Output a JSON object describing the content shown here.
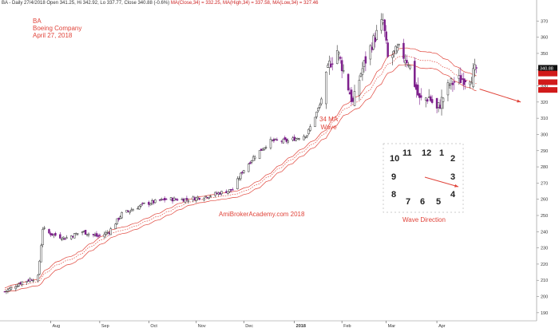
{
  "header": {
    "prefix": "BA - Daily 27/4/2018 Open 341.25, Hi 342.92, Lo 337.77, Close 340.88 (-0.6%)",
    "ma_close": "MA(Close,34) = 332.25,",
    "ma_high": "MA(High,34) = 337.58,",
    "ma_low": "MA(Low,34) = 327.46"
  },
  "annotations": {
    "ticker": "BA",
    "company": "Boeing Company",
    "date": "April 27, 2018",
    "ma_label": "34 MA",
    "wave_label": "Wave",
    "website": "AmiBrokerAcademy.com  2018",
    "wave_direction": "Wave Direction"
  },
  "clock": {
    "numbers": [
      "11",
      "12",
      "1",
      "10",
      "2",
      "9",
      "3",
      "8",
      "4",
      "7",
      "6",
      "5"
    ]
  },
  "price_tags": {
    "last": "340.88"
  },
  "colors": {
    "up_candle": "#ffffff",
    "down_candle": "#7d1f8c",
    "ma": "#e0443a",
    "annotation": "#e0443a"
  },
  "chart_data": {
    "type": "candlestick",
    "ylim": [
      185,
      380
    ],
    "yticks": [
      190,
      200,
      210,
      220,
      230,
      240,
      250,
      260,
      270,
      280,
      290,
      300,
      310,
      320,
      330,
      340,
      350,
      360,
      370
    ],
    "x_labels": [
      "Aug",
      "Sep",
      "Oct",
      "Nov",
      "Dec",
      "2018",
      "Feb",
      "Mar",
      "Apr"
    ],
    "price_path": [
      {
        "x": "2017-07-03",
        "close": 203
      },
      {
        "x": "2017-07-14",
        "close": 209
      },
      {
        "x": "2017-07-24",
        "close": 212
      },
      {
        "x": "2017-07-26",
        "close": 232
      },
      {
        "x": "2017-07-27",
        "close": 242
      },
      {
        "x": "2017-07-31",
        "close": 239
      },
      {
        "x": "2017-08-10",
        "close": 236
      },
      {
        "x": "2017-08-21",
        "close": 240
      },
      {
        "x": "2017-08-31",
        "close": 237
      },
      {
        "x": "2017-09-07",
        "close": 240
      },
      {
        "x": "2017-09-15",
        "close": 251
      },
      {
        "x": "2017-09-29",
        "close": 257
      },
      {
        "x": "2017-10-13",
        "close": 260
      },
      {
        "x": "2017-10-27",
        "close": 260
      },
      {
        "x": "2017-11-08",
        "close": 262
      },
      {
        "x": "2017-11-24",
        "close": 266
      },
      {
        "x": "2017-11-30",
        "close": 277
      },
      {
        "x": "2017-12-08",
        "close": 287
      },
      {
        "x": "2017-12-18",
        "close": 296
      },
      {
        "x": "2017-12-29",
        "close": 296
      },
      {
        "x": "2018-01-10",
        "close": 300
      },
      {
        "x": "2018-01-18",
        "close": 318
      },
      {
        "x": "2018-01-24",
        "close": 343
      },
      {
        "x": "2018-01-29",
        "close": 352
      },
      {
        "x": "2018-02-02",
        "close": 339
      },
      {
        "x": "2018-02-08",
        "close": 319
      },
      {
        "x": "2018-02-13",
        "close": 338
      },
      {
        "x": "2018-02-20",
        "close": 356
      },
      {
        "x": "2018-02-27",
        "close": 370
      },
      {
        "x": "2018-03-02",
        "close": 347
      },
      {
        "x": "2018-03-09",
        "close": 352
      },
      {
        "x": "2018-03-15",
        "close": 345
      },
      {
        "x": "2018-03-22",
        "close": 321
      },
      {
        "x": "2018-03-28",
        "close": 323
      },
      {
        "x": "2018-04-02",
        "close": 315
      },
      {
        "x": "2018-04-10",
        "close": 331
      },
      {
        "x": "2018-04-17",
        "close": 334
      },
      {
        "x": "2018-04-24",
        "close": 336
      },
      {
        "x": "2018-04-27",
        "close": 340.88
      }
    ],
    "moving_averages": [
      {
        "name": "MA(Close,34)",
        "last": 332.25
      },
      {
        "name": "MA(High,34)",
        "last": 337.58
      },
      {
        "name": "MA(Low,34)",
        "last": 327.46
      }
    ],
    "arrows": [
      {
        "from": [
          "2018-04-29",
          328
        ],
        "to": [
          "2018-05-25",
          320
        ]
      }
    ]
  }
}
